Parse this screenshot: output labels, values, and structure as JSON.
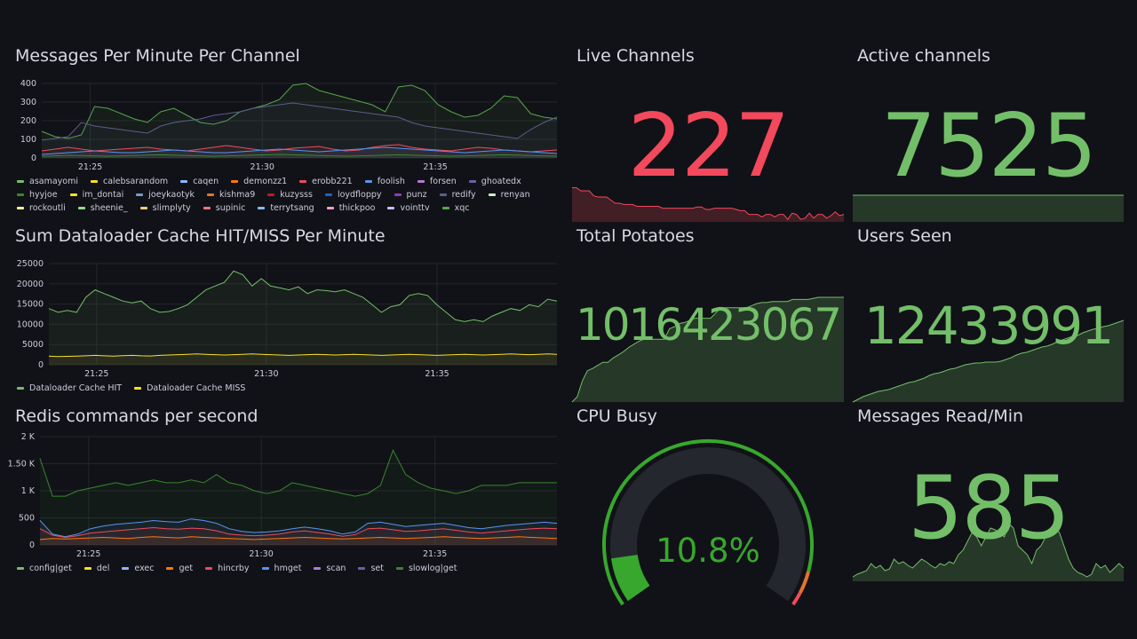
{
  "panels": {
    "messages": {
      "title": "Messages Per Minute Per Channel",
      "legend": [
        {
          "name": "asamayomi",
          "color": "#73bf69"
        },
        {
          "name": "calebsarandom",
          "color": "#fade2a"
        },
        {
          "name": "caqen",
          "color": "#8ab8ff"
        },
        {
          "name": "demonzz1",
          "color": "#ff780a"
        },
        {
          "name": "erobb221",
          "color": "#f2495c"
        },
        {
          "name": "foolish",
          "color": "#5794f2"
        },
        {
          "name": "forsen",
          "color": "#b877d9"
        },
        {
          "name": "ghoatedx",
          "color": "#705da0"
        },
        {
          "name": "hyyjoe",
          "color": "#37872d"
        },
        {
          "name": "im_dontai",
          "color": "#fade2a"
        },
        {
          "name": "joeykaotyk",
          "color": "#6d9ccf"
        },
        {
          "name": "kishma9",
          "color": "#e0752d"
        },
        {
          "name": "kuzysss",
          "color": "#c4162a"
        },
        {
          "name": "loydfloppy",
          "color": "#1f60c4"
        },
        {
          "name": "punz",
          "color": "#8f3bb8"
        },
        {
          "name": "redify",
          "color": "#5a5f8a"
        },
        {
          "name": "renyan",
          "color": "#c8f2c2"
        },
        {
          "name": "rockoutli",
          "color": "#fff899"
        },
        {
          "name": "sheenie_",
          "color": "#96d98d"
        },
        {
          "name": "slimplyty",
          "color": "#ffcb7d"
        },
        {
          "name": "supinic",
          "color": "#ff7383"
        },
        {
          "name": "terrytsang",
          "color": "#8ab8ff"
        },
        {
          "name": "thickpoo",
          "color": "#ff9cce"
        },
        {
          "name": "vointtv",
          "color": "#cabdff"
        },
        {
          "name": "xqc",
          "color": "#56a64b"
        }
      ]
    },
    "dataloader": {
      "title": "Sum Dataloader Cache HIT/MISS Per Minute",
      "legend": [
        {
          "name": "Dataloader Cache HIT",
          "color": "#73bf69"
        },
        {
          "name": "Dataloader Cache MISS",
          "color": "#fade2a"
        }
      ]
    },
    "redis": {
      "title": "Redis commands per second",
      "legend": [
        {
          "name": "config|get",
          "color": "#73bf69"
        },
        {
          "name": "del",
          "color": "#fade2a"
        },
        {
          "name": "exec",
          "color": "#8ab8ff"
        },
        {
          "name": "get",
          "color": "#ff780a"
        },
        {
          "name": "hincrby",
          "color": "#f2495c"
        },
        {
          "name": "hmget",
          "color": "#5794f2"
        },
        {
          "name": "scan",
          "color": "#b877d9"
        },
        {
          "name": "set",
          "color": "#705da0"
        },
        {
          "name": "slowlog|get",
          "color": "#37872d"
        }
      ]
    },
    "live_channels": {
      "title": "Live Channels",
      "value": "227",
      "color": "#f2495c"
    },
    "active_channels": {
      "title": "Active channels",
      "value": "7525",
      "color": "#73bf69"
    },
    "total_potatoes": {
      "title": "Total Potatoes",
      "value": "1016423067",
      "color": "#73bf69"
    },
    "users_seen": {
      "title": "Users Seen",
      "value": "12433991",
      "color": "#73bf69"
    },
    "cpu_busy": {
      "title": "CPU Busy",
      "value": "10.8%",
      "fraction": 0.108,
      "color": "#37a82d"
    },
    "messages_read": {
      "title": "Messages Read/Min",
      "value": "585",
      "color": "#73bf69"
    }
  },
  "chart_data": [
    {
      "type": "line",
      "title": "Messages Per Minute Per Channel",
      "x_ticks": [
        "21:25",
        "21:30",
        "21:35"
      ],
      "y_ticks": [
        "0",
        "100",
        "200",
        "300",
        "400"
      ],
      "ylim": [
        0,
        420
      ],
      "series": [
        {
          "name": "xqc",
          "values": [
            150,
            120,
            110,
            130,
            290,
            280,
            250,
            220,
            200,
            260,
            280,
            240,
            200,
            190,
            210,
            260,
            280,
            300,
            330,
            410,
            420,
            380,
            360,
            340,
            320,
            300,
            260,
            400,
            410,
            380,
            300,
            260,
            230,
            240,
            280,
            350,
            340,
            250,
            230,
            220
          ]
        },
        {
          "name": "redify",
          "values": [
            100,
            110,
            120,
            200,
            180,
            170,
            160,
            150,
            140,
            180,
            200,
            210,
            220,
            240,
            250,
            260,
            280,
            290,
            300,
            310,
            300,
            290,
            280,
            270,
            260,
            250,
            240,
            230,
            200,
            180,
            170,
            160,
            150,
            140,
            130,
            120,
            110,
            160,
            200,
            230
          ]
        },
        {
          "name": "erobb221",
          "values": [
            40,
            50,
            60,
            50,
            40,
            45,
            50,
            55,
            60,
            50,
            45,
            40,
            50,
            60,
            70,
            60,
            50,
            40,
            45,
            55,
            60,
            65,
            50,
            40,
            45,
            60,
            70,
            75,
            60,
            50,
            45,
            40,
            50,
            60,
            55,
            45,
            40,
            35,
            40,
            45
          ]
        },
        {
          "name": "foolish",
          "values": [
            20,
            25,
            30,
            35,
            40,
            35,
            30,
            30,
            35,
            40,
            45,
            40,
            35,
            30,
            30,
            35,
            40,
            45,
            50,
            45,
            40,
            35,
            40,
            45,
            50,
            55,
            60,
            55,
            50,
            45,
            40,
            35,
            30,
            35,
            40,
            45,
            40,
            35,
            30,
            25
          ]
        },
        {
          "name": "hyyjoe",
          "values": [
            10,
            12,
            15,
            14,
            12,
            10,
            12,
            14,
            16,
            18,
            16,
            14,
            12,
            10,
            12,
            14,
            16,
            18,
            20,
            18,
            16,
            14,
            12,
            10,
            12,
            14,
            16,
            18,
            16,
            14,
            12,
            10,
            12,
            14,
            16,
            18,
            16,
            14,
            12,
            10
          ]
        }
      ]
    },
    {
      "type": "line",
      "title": "Sum Dataloader Cache HIT/MISS Per Minute",
      "x_ticks": [
        "21:25",
        "21:30",
        "21:35"
      ],
      "y_ticks": [
        "0",
        "5000",
        "10000",
        "15000",
        "20000",
        "25000"
      ],
      "ylim": [
        0,
        27000
      ],
      "series": [
        {
          "name": "Dataloader Cache HIT",
          "values": [
            15000,
            14000,
            14500,
            14000,
            18000,
            20000,
            19000,
            18000,
            17000,
            16500,
            17000,
            15000,
            14000,
            14200,
            15000,
            16000,
            18000,
            20000,
            21000,
            22000,
            25000,
            24000,
            21000,
            23000,
            21000,
            20500,
            20000,
            20800,
            19000,
            20000,
            19800,
            19500,
            20000,
            19000,
            18000,
            16000,
            14000,
            15500,
            16000,
            18500,
            19000,
            18500,
            16000,
            14000,
            12000,
            11500,
            12000,
            11500,
            13000,
            14000,
            15000,
            14500,
            16000,
            15500,
            17500,
            17000
          ]
        },
        {
          "name": "Dataloader Cache MISS",
          "values": [
            2300,
            2200,
            2250,
            2300,
            2400,
            2500,
            2400,
            2300,
            2450,
            2500,
            2400,
            2350,
            2500,
            2600,
            2700,
            2800,
            2900,
            2800,
            2700,
            2600,
            2700,
            2800,
            2900,
            2800,
            2700,
            2600,
            2500,
            2600,
            2700,
            2800,
            2700,
            2600,
            2700,
            2800,
            2700,
            2600,
            2500,
            2600,
            2700,
            2800,
            2700,
            2600,
            2500,
            2600,
            2700,
            2800,
            2700,
            2600,
            2700,
            2800,
            2900,
            2800,
            2700,
            2800,
            2900,
            2800
          ]
        }
      ]
    },
    {
      "type": "area",
      "title": "Redis commands per second",
      "x_ticks": [
        "21:25",
        "21:30",
        "21:35"
      ],
      "y_ticks": [
        "0",
        "500",
        "1 K",
        "1.50 K",
        "2 K"
      ],
      "ylim": [
        0,
        2000
      ],
      "series": [
        {
          "name": "slowlog|get",
          "values": [
            1600,
            900,
            900,
            1000,
            1050,
            1100,
            1150,
            1100,
            1150,
            1200,
            1150,
            1150,
            1200,
            1150,
            1300,
            1150,
            1100,
            1000,
            950,
            1000,
            1150,
            1100,
            1050,
            1000,
            950,
            900,
            950,
            1100,
            1750,
            1300,
            1150,
            1050,
            1000,
            950,
            1000,
            1100,
            1100,
            1100,
            1150,
            1150,
            1150,
            1150
          ]
        },
        {
          "name": "hmget",
          "values": [
            450,
            200,
            150,
            200,
            300,
            350,
            380,
            400,
            420,
            450,
            430,
            420,
            480,
            450,
            400,
            300,
            250,
            230,
            240,
            260,
            300,
            330,
            300,
            260,
            200,
            240,
            400,
            420,
            380,
            340,
            360,
            380,
            400,
            360,
            320,
            300,
            330,
            360,
            380,
            400,
            420,
            400
          ]
        },
        {
          "name": "hincrby",
          "values": [
            300,
            180,
            140,
            170,
            220,
            240,
            260,
            280,
            300,
            320,
            300,
            290,
            310,
            300,
            260,
            200,
            180,
            170,
            180,
            200,
            240,
            260,
            230,
            200,
            160,
            190,
            300,
            310,
            280,
            250,
            260,
            280,
            300,
            270,
            240,
            220,
            240,
            260,
            280,
            300,
            310,
            300
          ]
        },
        {
          "name": "get",
          "values": [
            100,
            120,
            110,
            120,
            130,
            140,
            130,
            120,
            140,
            150,
            140,
            130,
            150,
            140,
            130,
            120,
            110,
            100,
            110,
            120,
            130,
            140,
            130,
            120,
            110,
            120,
            130,
            140,
            130,
            120,
            130,
            140,
            150,
            140,
            130,
            120,
            130,
            140,
            150,
            140,
            130,
            120
          ]
        }
      ]
    },
    {
      "type": "area",
      "title": "Live Channels",
      "ylim": [
        0,
        100
      ],
      "values": [
        55,
        55,
        50,
        50,
        50,
        42,
        40,
        40,
        40,
        35,
        30,
        30,
        28,
        28,
        28,
        25,
        25,
        25,
        25,
        25,
        25,
        22,
        22,
        22,
        22,
        22,
        22,
        22,
        22,
        24,
        24,
        20,
        20,
        22,
        22,
        22,
        22,
        22,
        20,
        18,
        18,
        12,
        12,
        12,
        8,
        12,
        12,
        8,
        12,
        12,
        4,
        14,
        12,
        4,
        6,
        14,
        6,
        12,
        12,
        6,
        10,
        16,
        10,
        12
      ]
    },
    {
      "type": "area",
      "title": "Active channels",
      "ylim": [
        0,
        100
      ],
      "values": [
        30,
        30,
        30,
        30,
        30,
        30,
        30,
        30,
        30,
        30,
        30,
        30
      ]
    },
    {
      "type": "area",
      "title": "Total Potatoes",
      "ylim": [
        0,
        100
      ],
      "values": [
        0,
        5,
        20,
        30,
        32,
        35,
        38,
        38,
        42,
        45,
        48,
        52,
        55,
        58,
        60,
        60,
        60,
        60,
        60,
        70,
        72,
        75,
        76,
        78,
        80,
        80,
        80,
        80,
        85,
        90,
        90,
        90,
        90,
        90,
        90,
        92,
        94,
        95,
        95,
        96,
        96,
        96,
        96,
        98,
        98,
        98,
        98,
        99,
        100,
        100,
        100,
        100,
        100,
        100
      ]
    },
    {
      "type": "area",
      "title": "Users Seen",
      "ylim": [
        0,
        100
      ],
      "values": [
        0,
        3,
        6,
        8,
        10,
        12,
        13,
        14,
        16,
        18,
        20,
        22,
        23,
        25,
        27,
        30,
        32,
        33,
        35,
        37,
        38,
        40,
        42,
        43,
        44,
        44,
        45,
        45,
        45,
        46,
        48,
        50,
        53,
        55,
        56,
        58,
        60,
        62,
        63,
        65,
        68,
        70,
        72,
        74,
        75,
        78,
        80,
        82,
        83,
        85,
        86,
        88,
        90,
        92
      ]
    },
    {
      "type": "area",
      "title": "Messages Read/Min",
      "ylim": [
        0,
        100
      ],
      "values": [
        5,
        8,
        10,
        12,
        20,
        15,
        18,
        12,
        14,
        25,
        20,
        22,
        18,
        15,
        20,
        25,
        22,
        18,
        15,
        20,
        18,
        22,
        20,
        30,
        35,
        45,
        55,
        50,
        40,
        50,
        60,
        58,
        55,
        50,
        65,
        60,
        40,
        35,
        30,
        20,
        35,
        40,
        50,
        55,
        60,
        55,
        40,
        25,
        15,
        10,
        8,
        5,
        8,
        20,
        15,
        18,
        10,
        15,
        20,
        15
      ]
    }
  ]
}
